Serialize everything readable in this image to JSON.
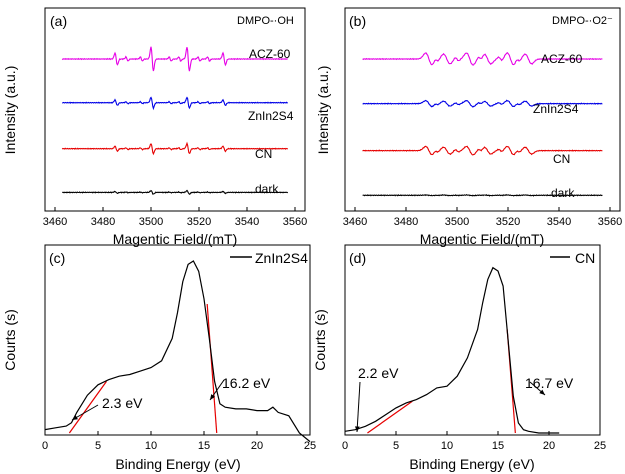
{
  "chart_data": [
    {
      "type": "line",
      "panel": "(a)",
      "title": "DMPO-·OH",
      "xlabel": "Magentic Field/(mT)",
      "ylabel": "Intensity (a.u.)",
      "xlim": [
        3460,
        3560
      ],
      "xticks": [
        3460,
        3480,
        3500,
        3520,
        3540,
        3560
      ],
      "y_ticks_shown": false,
      "series": [
        {
          "name": "ACZ-60",
          "color": "#e600e6",
          "offset": 3.0,
          "amp": 1.0
        },
        {
          "name": "ZnIn2S4",
          "color": "#0000e6",
          "offset": 2.05,
          "amp": 0.45
        },
        {
          "name": "CN",
          "color": "#e60000",
          "offset": 1.05,
          "amp": 0.42
        },
        {
          "name": "dark",
          "color": "#000000",
          "offset": 0.1,
          "amp": 0.15
        }
      ],
      "peak_positions_mT": [
        3485.5,
        3500.5,
        3515.5,
        3530.5
      ],
      "peak_ratio": [
        1,
        2,
        2,
        1
      ]
    },
    {
      "type": "line",
      "panel": "(b)",
      "title": "DMPO-·O2⁻",
      "xlabel": "Magentic Field/(mT)",
      "ylabel": "Intensity (a.u.)",
      "xlim": [
        3460,
        3560
      ],
      "xticks": [
        3460,
        3480,
        3500,
        3520,
        3540,
        3560
      ],
      "y_ticks_shown": false,
      "series": [
        {
          "name": "ACZ-60",
          "color": "#e600e6",
          "offset": 3.0,
          "amp": 1.0
        },
        {
          "name": "ZnIn2S4",
          "color": "#0000e6",
          "offset": 2.05,
          "amp": 0.5
        },
        {
          "name": "CN",
          "color": "#e60000",
          "offset": 1.05,
          "amp": 0.7
        },
        {
          "name": "dark",
          "color": "#000000",
          "offset": 0.1,
          "amp": 0.05
        }
      ],
      "peak_positions_mT": [
        3489,
        3496,
        3505,
        3512,
        3521,
        3528
      ]
    },
    {
      "type": "line",
      "panel": "(c)",
      "legend": "ZnIn2S4",
      "xlabel": "Binding Energy (eV)",
      "ylabel": "Courts (s)",
      "xlim": [
        0,
        25
      ],
      "xticks": [
        0,
        5,
        10,
        15,
        20,
        25
      ],
      "y_ticks_shown": false,
      "x": [
        0,
        1,
        2,
        2.5,
        3,
        4,
        5,
        6,
        7,
        8,
        9,
        10,
        11,
        12,
        12.5,
        13,
        13.5,
        14,
        14.5,
        15,
        15.5,
        16,
        16.5,
        17,
        18,
        19,
        20,
        21,
        21.5,
        22,
        23,
        24,
        25
      ],
      "y": [
        0.02,
        0.03,
        0.04,
        0.06,
        0.12,
        0.22,
        0.28,
        0.31,
        0.33,
        0.34,
        0.36,
        0.38,
        0.42,
        0.55,
        0.7,
        0.88,
        0.98,
        1.0,
        0.94,
        0.78,
        0.55,
        0.3,
        0.17,
        0.15,
        0.14,
        0.14,
        0.13,
        0.13,
        0.15,
        0.12,
        0.1,
        0.0,
        -0.05
      ],
      "fit_lines": [
        {
          "x": [
            2.3,
            5.8
          ],
          "y": [
            0.0,
            0.3
          ]
        },
        {
          "x": [
            15.3,
            16.2
          ],
          "y": [
            0.75,
            0.0
          ]
        }
      ],
      "annotations": [
        {
          "text": "2.3 eV",
          "x": 6.0,
          "y": 0.1
        },
        {
          "text": "16.2 eV",
          "x": 20.5,
          "y": 0.28
        }
      ]
    },
    {
      "type": "line",
      "panel": "(d)",
      "legend": "CN",
      "xlabel": "Binding Energy (eV)",
      "ylabel": "Courts (s)",
      "xlim": [
        0,
        25
      ],
      "xticks": [
        0,
        5,
        10,
        15,
        20,
        25
      ],
      "y_ticks_shown": false,
      "x": [
        0,
        1,
        2,
        3,
        4,
        5,
        6,
        7,
        8,
        9,
        10,
        11,
        12,
        13,
        13.5,
        14,
        14.5,
        15,
        15.5,
        16,
        16.5,
        17,
        17.5,
        18,
        19,
        20,
        21
      ],
      "y": [
        0.01,
        0.02,
        0.04,
        0.07,
        0.11,
        0.15,
        0.18,
        0.2,
        0.23,
        0.27,
        0.28,
        0.34,
        0.45,
        0.62,
        0.78,
        0.92,
        0.99,
        0.97,
        0.88,
        0.55,
        0.22,
        0.06,
        0.02,
        0.01,
        0.0,
        0.0,
        0.0
      ],
      "fit_lines": [
        {
          "x": [
            2.2,
            6.6
          ],
          "y": [
            0.0,
            0.19
          ]
        },
        {
          "x": [
            15.9,
            16.7
          ],
          "y": [
            0.62,
            0.0
          ]
        }
      ],
      "annotations": [
        {
          "text": "2.2 eV",
          "x": 3.0,
          "y": 0.4
        },
        {
          "text": "16.7 eV",
          "x": 19.8,
          "y": 0.3
        }
      ]
    }
  ]
}
